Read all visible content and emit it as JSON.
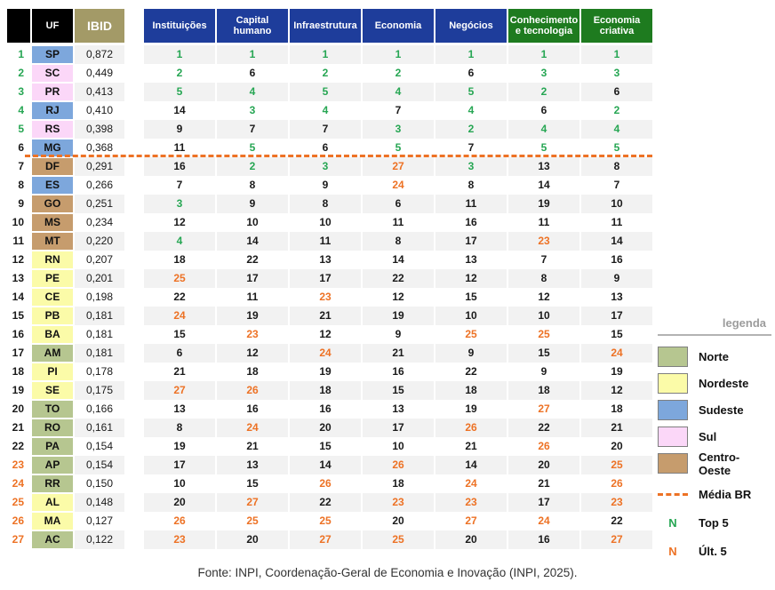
{
  "chart_data": {
    "type": "table",
    "header": {
      "uf": "UF",
      "ibid": "IBID",
      "pillars": [
        {
          "label": "Instituições",
          "theme": "blue"
        },
        {
          "label": "Capital humano",
          "theme": "blue"
        },
        {
          "label": "Infraestrutura",
          "theme": "blue"
        },
        {
          "label": "Economia",
          "theme": "blue"
        },
        {
          "label": "Negócios",
          "theme": "blue"
        },
        {
          "label": "Conhecimento e tecnologia",
          "theme": "green"
        },
        {
          "label": "Economia criativa",
          "theme": "green"
        }
      ]
    },
    "color_rules": {
      "top_threshold": 5,
      "bottom_threshold": 23,
      "top_color": "#26a653",
      "bottom_color": "#ed7225",
      "normal_color": "#1a1a1a"
    },
    "media_br_line_after_rank": 6,
    "rows": [
      {
        "rank": 1,
        "uf": "SP",
        "region": "Sudeste",
        "ibid": "0,872",
        "values": [
          1,
          1,
          1,
          1,
          1,
          1,
          1
        ]
      },
      {
        "rank": 2,
        "uf": "SC",
        "region": "Sul",
        "ibid": "0,449",
        "values": [
          2,
          6,
          2,
          2,
          6,
          3,
          3
        ]
      },
      {
        "rank": 3,
        "uf": "PR",
        "region": "Sul",
        "ibid": "0,413",
        "values": [
          5,
          4,
          5,
          4,
          5,
          2,
          6
        ]
      },
      {
        "rank": 4,
        "uf": "RJ",
        "region": "Sudeste",
        "ibid": "0,410",
        "values": [
          14,
          3,
          4,
          7,
          4,
          6,
          2
        ]
      },
      {
        "rank": 5,
        "uf": "RS",
        "region": "Sul",
        "ibid": "0,398",
        "values": [
          9,
          7,
          7,
          3,
          2,
          4,
          4
        ]
      },
      {
        "rank": 6,
        "uf": "MG",
        "region": "Sudeste",
        "ibid": "0,368",
        "values": [
          11,
          5,
          6,
          5,
          7,
          5,
          5
        ]
      },
      {
        "rank": 7,
        "uf": "DF",
        "region": "Centro-Oeste",
        "ibid": "0,291",
        "values": [
          16,
          2,
          3,
          27,
          3,
          13,
          8
        ]
      },
      {
        "rank": 8,
        "uf": "ES",
        "region": "Sudeste",
        "ibid": "0,266",
        "values": [
          7,
          8,
          9,
          24,
          8,
          14,
          7
        ]
      },
      {
        "rank": 9,
        "uf": "GO",
        "region": "Centro-Oeste",
        "ibid": "0,251",
        "values": [
          3,
          9,
          8,
          6,
          11,
          19,
          10
        ]
      },
      {
        "rank": 10,
        "uf": "MS",
        "region": "Centro-Oeste",
        "ibid": "0,234",
        "values": [
          12,
          10,
          10,
          11,
          16,
          11,
          11
        ]
      },
      {
        "rank": 11,
        "uf": "MT",
        "region": "Centro-Oeste",
        "ibid": "0,220",
        "values": [
          4,
          14,
          11,
          8,
          17,
          23,
          14
        ]
      },
      {
        "rank": 12,
        "uf": "RN",
        "region": "Nordeste",
        "ibid": "0,207",
        "values": [
          18,
          22,
          13,
          14,
          13,
          7,
          16
        ]
      },
      {
        "rank": 13,
        "uf": "PE",
        "region": "Nordeste",
        "ibid": "0,201",
        "values": [
          25,
          17,
          17,
          22,
          12,
          8,
          9
        ]
      },
      {
        "rank": 14,
        "uf": "CE",
        "region": "Nordeste",
        "ibid": "0,198",
        "values": [
          22,
          11,
          23,
          12,
          15,
          12,
          13
        ]
      },
      {
        "rank": 15,
        "uf": "PB",
        "region": "Nordeste",
        "ibid": "0,181",
        "values": [
          24,
          19,
          21,
          19,
          10,
          10,
          17
        ]
      },
      {
        "rank": 16,
        "uf": "BA",
        "region": "Nordeste",
        "ibid": "0,181",
        "values": [
          15,
          23,
          12,
          9,
          25,
          25,
          15
        ]
      },
      {
        "rank": 17,
        "uf": "AM",
        "region": "Norte",
        "ibid": "0,181",
        "values": [
          6,
          12,
          24,
          21,
          9,
          15,
          24
        ]
      },
      {
        "rank": 18,
        "uf": "PI",
        "region": "Nordeste",
        "ibid": "0,178",
        "values": [
          21,
          18,
          19,
          16,
          22,
          9,
          19
        ]
      },
      {
        "rank": 19,
        "uf": "SE",
        "region": "Nordeste",
        "ibid": "0,175",
        "values": [
          27,
          26,
          18,
          15,
          18,
          18,
          12
        ]
      },
      {
        "rank": 20,
        "uf": "TO",
        "region": "Norte",
        "ibid": "0,166",
        "values": [
          13,
          16,
          16,
          13,
          19,
          27,
          18
        ]
      },
      {
        "rank": 21,
        "uf": "RO",
        "region": "Norte",
        "ibid": "0,161",
        "values": [
          8,
          24,
          20,
          17,
          26,
          22,
          21
        ]
      },
      {
        "rank": 22,
        "uf": "PA",
        "region": "Norte",
        "ibid": "0,154",
        "values": [
          19,
          21,
          15,
          10,
          21,
          26,
          20
        ]
      },
      {
        "rank": 23,
        "uf": "AP",
        "region": "Norte",
        "ibid": "0,154",
        "values": [
          17,
          13,
          14,
          26,
          14,
          20,
          25
        ]
      },
      {
        "rank": 24,
        "uf": "RR",
        "region": "Norte",
        "ibid": "0,150",
        "values": [
          10,
          15,
          26,
          18,
          24,
          21,
          26
        ]
      },
      {
        "rank": 25,
        "uf": "AL",
        "region": "Nordeste",
        "ibid": "0,148",
        "values": [
          20,
          27,
          22,
          23,
          23,
          17,
          23
        ]
      },
      {
        "rank": 26,
        "uf": "MA",
        "region": "Nordeste",
        "ibid": "0,127",
        "values": [
          26,
          25,
          25,
          20,
          27,
          24,
          22
        ]
      },
      {
        "rank": 27,
        "uf": "AC",
        "region": "Norte",
        "ibid": "0,122",
        "values": [
          23,
          20,
          27,
          25,
          20,
          16,
          27
        ]
      }
    ]
  },
  "legend": {
    "title": "legenda",
    "regions": [
      {
        "label": "Norte",
        "color": "#b6c690"
      },
      {
        "label": "Nordeste",
        "color": "#fbfba8"
      },
      {
        "label": "Sudeste",
        "color": "#7da7dc"
      },
      {
        "label": "Sul",
        "color": "#fbd7f8"
      },
      {
        "label": "Centro-Oeste",
        "color": "#c69c6d"
      }
    ],
    "media_br": {
      "label": "Média BR",
      "color": "#ed7225"
    },
    "top5": {
      "symbol": "N",
      "label": "Top 5",
      "color": "#26a653"
    },
    "ult5": {
      "symbol": "N",
      "label": "Últ. 5",
      "color": "#ed7225"
    }
  },
  "footer": {
    "source": "Fonte: INPI, Coordenação-Geral de Economia e Inovação (INPI, 2025)."
  },
  "colors": {
    "header_blue": "#1e3d9b",
    "header_green": "#1e7b1f",
    "header_black": "#000000",
    "ibid_khaki": "#a39a67",
    "ibid_text": "#ffffff",
    "stripe": "#f2f2f2"
  }
}
